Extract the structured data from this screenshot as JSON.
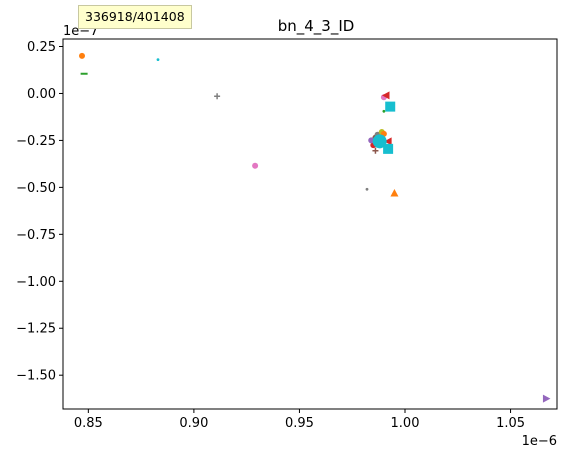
{
  "tooltip": {
    "text": "336918/401408"
  },
  "chart_data": {
    "type": "scatter",
    "title": "bn_4_3_ID",
    "xlabel": "",
    "ylabel": "",
    "x_offset_label": "1e−6",
    "y_offset_label": "1e−7",
    "xlim": [
      0.838,
      1.072
    ],
    "ylim": [
      -1.68,
      0.29
    ],
    "x_ticks": [
      0.85,
      0.9,
      0.95,
      1.0,
      1.05
    ],
    "x_tick_labels": [
      "0.85",
      "0.90",
      "0.95",
      "1.00",
      "1.05"
    ],
    "y_ticks": [
      0.25,
      0.0,
      -0.25,
      -0.5,
      -0.75,
      -1.0,
      -1.25,
      -1.5
    ],
    "y_tick_labels": [
      "0.25",
      "0.00",
      "−0.25",
      "−0.50",
      "−0.75",
      "−1.00",
      "−1.25",
      "−1.50"
    ],
    "grid": false,
    "legend": "none",
    "points": [
      {
        "x": 0.847,
        "y": 0.2,
        "marker": "circle",
        "color": "#ff7f0e"
      },
      {
        "x": 0.848,
        "y": 0.105,
        "marker": "hline",
        "color": "#2ca02c"
      },
      {
        "x": 0.883,
        "y": 0.18,
        "marker": "dot",
        "color": "#17becf"
      },
      {
        "x": 0.911,
        "y": -0.015,
        "marker": "plus",
        "color": "#7f7f7f"
      },
      {
        "x": 0.929,
        "y": -0.385,
        "marker": "circle",
        "color": "#e377c2"
      },
      {
        "x": 0.982,
        "y": -0.51,
        "marker": "dot",
        "color": "#7f7f7f"
      },
      {
        "x": 0.995,
        "y": -0.53,
        "marker": "triangle-up",
        "color": "#ff7f0e"
      },
      {
        "x": 0.99,
        "y": -0.02,
        "marker": "circle",
        "color": "#e377c2"
      },
      {
        "x": 0.991,
        "y": -0.01,
        "marker": "triangle-left",
        "color": "#d62728"
      },
      {
        "x": 0.993,
        "y": -0.07,
        "marker": "square",
        "color": "#17becf"
      },
      {
        "x": 0.99,
        "y": -0.095,
        "marker": "dot",
        "color": "#2ca02c"
      },
      {
        "x": 0.986,
        "y": -0.235,
        "marker": "circle",
        "color": "#8c564b"
      },
      {
        "x": 0.985,
        "y": -0.275,
        "marker": "circle",
        "color": "#d62728"
      },
      {
        "x": 0.987,
        "y": -0.22,
        "marker": "circle",
        "color": "#7f7f7f"
      },
      {
        "x": 0.984,
        "y": -0.25,
        "marker": "circle",
        "color": "#9467bd"
      },
      {
        "x": 0.989,
        "y": -0.205,
        "marker": "circle",
        "color": "#bcbd22"
      },
      {
        "x": 0.99,
        "y": -0.215,
        "marker": "circle",
        "color": "#ff7f0e"
      },
      {
        "x": 0.992,
        "y": -0.255,
        "marker": "triangle-left",
        "color": "#d62728"
      },
      {
        "x": 0.986,
        "y": -0.305,
        "marker": "plus",
        "color": "#8c564b"
      },
      {
        "x": 0.989,
        "y": -0.265,
        "marker": "circle",
        "color": "#7f7f7f"
      },
      {
        "x": 0.988,
        "y": -0.255,
        "marker": "circle-large",
        "color": "#17becf"
      },
      {
        "x": 0.992,
        "y": -0.295,
        "marker": "square",
        "color": "#17becf"
      },
      {
        "x": 1.067,
        "y": -1.625,
        "marker": "triangle-right",
        "color": "#9467bd"
      }
    ]
  }
}
